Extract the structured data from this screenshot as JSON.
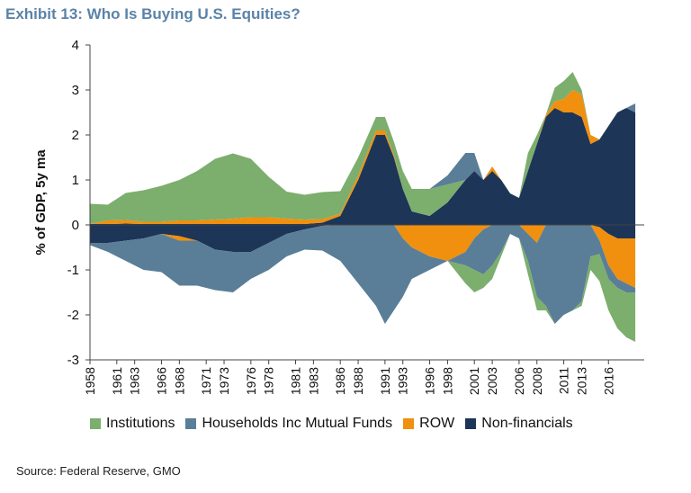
{
  "title": "Exhibit 13: Who Is Buying U.S. Equities?",
  "source": "Source: Federal Reserve, GMO",
  "chart_data": {
    "type": "area",
    "ylabel": "% of GDP, 5y ma",
    "xlabel": "",
    "ylim": [
      -3,
      4
    ],
    "yticks": [
      4,
      3,
      2,
      1,
      0,
      -1,
      -2,
      -3
    ],
    "xlim": [
      1958,
      2020
    ],
    "xticks": [
      1958,
      1961,
      1963,
      1966,
      1968,
      1971,
      1973,
      1976,
      1978,
      1981,
      1983,
      1986,
      1988,
      1991,
      1993,
      1996,
      1998,
      2001,
      2003,
      2006,
      2008,
      2011,
      2013,
      2016
    ],
    "grid": false,
    "legend": "bottom",
    "x": [
      1958,
      1960,
      1962,
      1964,
      1966,
      1968,
      1970,
      1972,
      1974,
      1976,
      1978,
      1980,
      1982,
      1984,
      1986,
      1988,
      1990,
      1991,
      1992,
      1993,
      1994,
      1996,
      1998,
      2000,
      2001,
      2002,
      2003,
      2004,
      2005,
      2006,
      2007,
      2008,
      2009,
      2010,
      2011,
      2012,
      2013,
      2014,
      2015,
      2016,
      2017,
      2018,
      2019
    ],
    "series": [
      {
        "name": "Non-financials",
        "color": "#1d3557",
        "values": [
          0.02,
          0.02,
          0.03,
          0.02,
          0.02,
          0.02,
          0.02,
          0.02,
          0.02,
          0.02,
          0.02,
          0.02,
          0.02,
          0.05,
          0.2,
          1.0,
          2.0,
          2.0,
          1.5,
          0.8,
          0.3,
          0.2,
          0.5,
          1.0,
          1.2,
          1.0,
          1.2,
          1.0,
          0.7,
          0.6,
          1.2,
          1.8,
          2.4,
          2.6,
          2.5,
          2.5,
          2.4,
          1.8,
          1.9,
          2.2,
          2.5,
          2.6,
          2.5
        ]
      },
      {
        "name": "ROW",
        "color": "#f0900e",
        "values": [
          0.0,
          0.08,
          0.08,
          0.05,
          0.05,
          0.08,
          0.08,
          0.1,
          0.12,
          0.15,
          0.15,
          0.12,
          0.1,
          0.08,
          0.05,
          0.1,
          0.1,
          0.1,
          0.05,
          0.0,
          0.0,
          0.0,
          0.0,
          0.0,
          0.0,
          0.0,
          0.1,
          0.0,
          0.0,
          0.0,
          0.0,
          0.0,
          0.05,
          0.15,
          0.3,
          0.5,
          0.5,
          0.2,
          0.0,
          0.0,
          0.0,
          0.0,
          0.0
        ]
      },
      {
        "name": "Institutions",
        "color": "#7cae6d",
        "values": [
          0.45,
          0.35,
          0.6,
          0.7,
          0.8,
          0.9,
          1.1,
          1.35,
          1.45,
          1.3,
          0.9,
          0.6,
          0.55,
          0.6,
          0.5,
          0.4,
          0.3,
          0.3,
          0.3,
          0.4,
          0.5,
          0.6,
          0.4,
          0.0,
          0.0,
          0.0,
          0.0,
          0.0,
          0.0,
          0.0,
          0.4,
          0.2,
          0.0,
          0.3,
          0.4,
          0.4,
          0.1,
          0.0,
          0.0,
          0.0,
          0.0,
          0.0,
          0.0
        ]
      },
      {
        "name": "Households Inc Mutual Funds",
        "color": "#5a7e98",
        "values": [
          0.0,
          0.0,
          0.0,
          0.0,
          0.0,
          0.0,
          0.0,
          0.0,
          0.0,
          0.0,
          0.0,
          0.0,
          0.0,
          0.0,
          0.0,
          0.0,
          0.0,
          0.0,
          0.0,
          0.0,
          0.0,
          0.0,
          0.2,
          0.6,
          0.4,
          0.0,
          0.0,
          0.0,
          0.0,
          0.0,
          0.0,
          0.0,
          0.0,
          0.0,
          0.0,
          0.0,
          0.0,
          0.0,
          0.0,
          0.0,
          0.0,
          0.0,
          0.2
        ]
      }
    ],
    "negative_series": [
      {
        "name": "Non-financials",
        "color": "#1d3557",
        "values": [
          -0.4,
          -0.4,
          -0.35,
          -0.3,
          -0.2,
          -0.25,
          -0.35,
          -0.55,
          -0.6,
          -0.6,
          -0.4,
          -0.2,
          -0.1,
          -0.02,
          0.0,
          0.0,
          0.0,
          0.0,
          0.0,
          0.0,
          0.0,
          0.0,
          0.0,
          0.0,
          0.0,
          0.0,
          0.0,
          0.0,
          0.0,
          0.0,
          0.0,
          0.0,
          0.0,
          0.0,
          0.0,
          0.0,
          0.0,
          0.0,
          -0.05,
          -0.2,
          -0.3,
          -0.3,
          -0.3
        ]
      },
      {
        "name": "ROW",
        "color": "#f0900e",
        "values": [
          0.0,
          0.0,
          0.0,
          0.0,
          0.0,
          -0.1,
          0.0,
          0.0,
          0.0,
          0.0,
          0.0,
          0.0,
          0.0,
          0.0,
          0.0,
          0.0,
          0.0,
          0.0,
          0.0,
          -0.3,
          -0.5,
          -0.7,
          -0.8,
          -0.6,
          -0.3,
          -0.1,
          0.0,
          0.0,
          0.0,
          0.0,
          -0.2,
          -0.4,
          0.0,
          0.0,
          0.0,
          0.0,
          0.0,
          0.0,
          -0.3,
          -0.7,
          -0.9,
          -1.0,
          -1.1
        ]
      },
      {
        "name": "Households Inc Mutual Funds",
        "color": "#5a7e98",
        "values": [
          -0.05,
          -0.2,
          -0.45,
          -0.7,
          -0.85,
          -1.0,
          -1.0,
          -0.9,
          -0.9,
          -0.6,
          -0.6,
          -0.5,
          -0.45,
          -0.55,
          -0.8,
          -1.3,
          -1.8,
          -2.2,
          -1.9,
          -1.3,
          -0.7,
          -0.3,
          0.0,
          -0.3,
          -0.7,
          -1.0,
          -0.9,
          -0.6,
          -0.2,
          -0.3,
          -0.6,
          -1.2,
          -1.8,
          -2.2,
          -2.0,
          -1.9,
          -1.7,
          -0.7,
          -0.3,
          -0.3,
          -0.2,
          -0.2,
          -0.1
        ]
      },
      {
        "name": "Institutions",
        "color": "#7cae6d",
        "values": [
          0.0,
          0.0,
          0.0,
          0.0,
          0.0,
          0.0,
          0.0,
          0.0,
          0.0,
          0.0,
          0.0,
          0.0,
          0.0,
          0.0,
          0.0,
          0.0,
          0.0,
          0.0,
          0.0,
          0.0,
          0.0,
          0.0,
          0.0,
          -0.4,
          -0.5,
          -0.3,
          -0.3,
          -0.1,
          0.0,
          0.0,
          -0.3,
          -0.3,
          -0.1,
          0.0,
          0.0,
          0.0,
          -0.1,
          -0.3,
          -0.6,
          -0.7,
          -0.9,
          -1.0,
          -1.1
        ]
      }
    ],
    "legend_items": [
      {
        "label": "Institutions",
        "color": "#7cae6d"
      },
      {
        "label": "Households Inc Mutual Funds",
        "color": "#5a7e98"
      },
      {
        "label": "ROW",
        "color": "#f0900e"
      },
      {
        "label": "Non-financials",
        "color": "#1d3557"
      }
    ]
  }
}
